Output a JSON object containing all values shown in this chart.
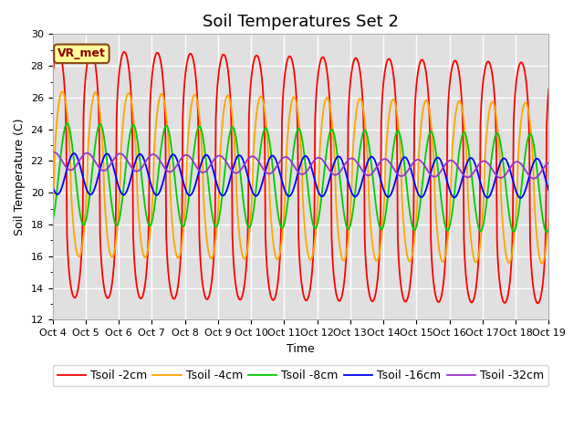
{
  "title": "Soil Temperatures Set 2",
  "xlabel": "Time",
  "ylabel": "Soil Temperature (C)",
  "ylim": [
    12,
    30
  ],
  "yticks": [
    12,
    14,
    16,
    18,
    20,
    22,
    24,
    26,
    28,
    30
  ],
  "x_tick_labels": [
    "Oct 4",
    "Oct 5",
    "Oct 6",
    "Oct 7",
    "Oct 8",
    "Oct 9",
    "Oct 10",
    "Oct 11",
    "Oct 12",
    "Oct 13",
    "Oct 14",
    "Oct 15",
    "Oct 16",
    "Oct 17",
    "Oct 18",
    "Oct 19"
  ],
  "series": [
    {
      "label": "Tsoil -2cm",
      "color": "#FF0000",
      "mean": 21.2,
      "amp": 7.8,
      "phase": -0.5,
      "mean_trend": -0.04,
      "amp_trend": -0.015,
      "sharpness": 3.0
    },
    {
      "label": "Tsoil -4cm",
      "color": "#FFA500",
      "mean": 21.2,
      "amp": 5.2,
      "phase": 0.3,
      "mean_trend": -0.04,
      "amp_trend": -0.01,
      "sharpness": 1.5
    },
    {
      "label": "Tsoil -8cm",
      "color": "#00CC00",
      "mean": 21.2,
      "amp": 3.2,
      "phase": 1.2,
      "mean_trend": -0.04,
      "amp_trend": -0.008,
      "sharpness": 1.0
    },
    {
      "label": "Tsoil -16cm",
      "color": "#0000FF",
      "mean": 21.2,
      "amp": 1.3,
      "phase": 2.5,
      "mean_trend": -0.02,
      "amp_trend": -0.004,
      "sharpness": 1.0
    },
    {
      "label": "Tsoil -32cm",
      "color": "#9933CC",
      "mean": 22.0,
      "amp": 0.55,
      "phase": 5.0,
      "mean_trend": -0.04,
      "amp_trend": -0.002,
      "sharpness": 1.0
    }
  ],
  "annotation_text": "VR_met",
  "bg_color": "#E0E0E0",
  "fig_color": "#FFFFFF",
  "title_fontsize": 13,
  "axis_fontsize": 9,
  "tick_fontsize": 8,
  "legend_fontsize": 9,
  "linewidth": 1.3
}
